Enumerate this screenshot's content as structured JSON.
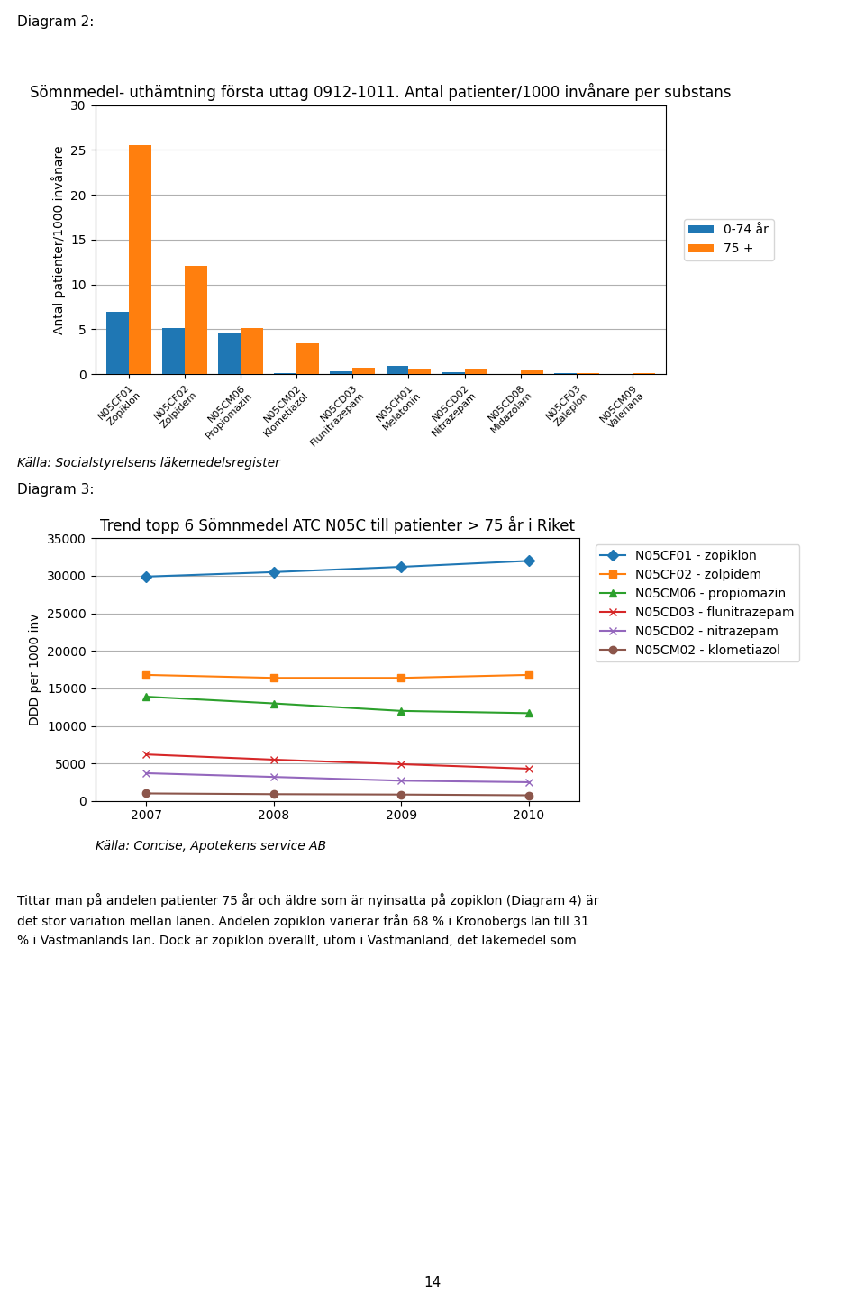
{
  "chart_data": [
    {
      "type": "bar",
      "title": "Sömnmedel- uthämtning första uttag 0912-1011. Antal patienter/1000 invånare per substans",
      "ylabel": "Antal patienter/1000 invånare",
      "categories": [
        "N05CF01\nZopiklon",
        "N05CF02\nZolpidem",
        "N05CM06\nPropiomazin",
        "N05CM02\nKlometiazol",
        "N05CD03\nFlunitrazepam",
        "N05CH01\nMelatonin",
        "N05CD02\nNitrazepam",
        "N05CD08\nMidazolam",
        "N05CF03\nZaleplon",
        "N05CM09\nValeriana"
      ],
      "series": [
        {
          "name": "0-74 år",
          "values": [
            7.0,
            5.1,
            4.5,
            0.08,
            0.28,
            0.9,
            0.18,
            0.05,
            0.08,
            0.05
          ]
        },
        {
          "name": "75 +",
          "values": [
            25.5,
            12.1,
            5.1,
            3.4,
            0.7,
            0.55,
            0.55,
            0.4,
            0.15,
            0.15
          ]
        }
      ],
      "ylim": [
        0,
        30
      ],
      "yticks": [
        0,
        5,
        10,
        15,
        20,
        25,
        30
      ],
      "grid": true,
      "legend": "right",
      "annotations": [
        "Diagram 2:",
        "Källa: Socialstyrelsens läkemedelsregister"
      ]
    },
    {
      "type": "line",
      "title": "Trend topp 6 Sömnmedel ATC N05C till patienter > 75 år i Riket",
      "ylabel": "DDD per 1000 inv",
      "x": [
        2007,
        2008,
        2009,
        2010
      ],
      "series": [
        {
          "name": "N05CF01 - zopiklon",
          "marker": "diamond",
          "values": [
            29900,
            30500,
            31200,
            32000
          ]
        },
        {
          "name": "N05CF02 - zolpidem",
          "marker": "square",
          "values": [
            16800,
            16400,
            16400,
            16800
          ]
        },
        {
          "name": "N05CM06 - propiomazin",
          "marker": "triangle",
          "values": [
            13900,
            13000,
            12000,
            11700
          ]
        },
        {
          "name": "N05CD03 - flunitrazepam",
          "marker": "x",
          "values": [
            6200,
            5500,
            4900,
            4300
          ]
        },
        {
          "name": "N05CD02 - nitrazepam",
          "marker": "x",
          "values": [
            3700,
            3200,
            2700,
            2500
          ]
        },
        {
          "name": "N05CM02 - klometiazol",
          "marker": "circle",
          "values": [
            1000,
            900,
            850,
            750
          ]
        }
      ],
      "xlim": [
        2006.6,
        2010.4
      ],
      "xticks": [
        2007,
        2008,
        2009,
        2010
      ],
      "ylim": [
        0,
        35000
      ],
      "yticks": [
        0,
        5000,
        10000,
        15000,
        20000,
        25000,
        30000,
        35000
      ],
      "grid": true,
      "legend": "upper left",
      "annotations": [
        "Diagram 3:",
        "Källa: Concise, Apotekens service AB"
      ]
    }
  ],
  "annotations": [
    "Tittar man på andelen patienter 75 år och äldre som är nyinsatta på zopiklon (Diagram 4) är\ndet stor variation mellan länen. Andelen zopiklon varierar från 68 % i Kronobergs län till 31\n% i Västmanlands län. Dock är zopiklon överallt, utom i Västmanland, det läkemedel som",
    "14"
  ]
}
